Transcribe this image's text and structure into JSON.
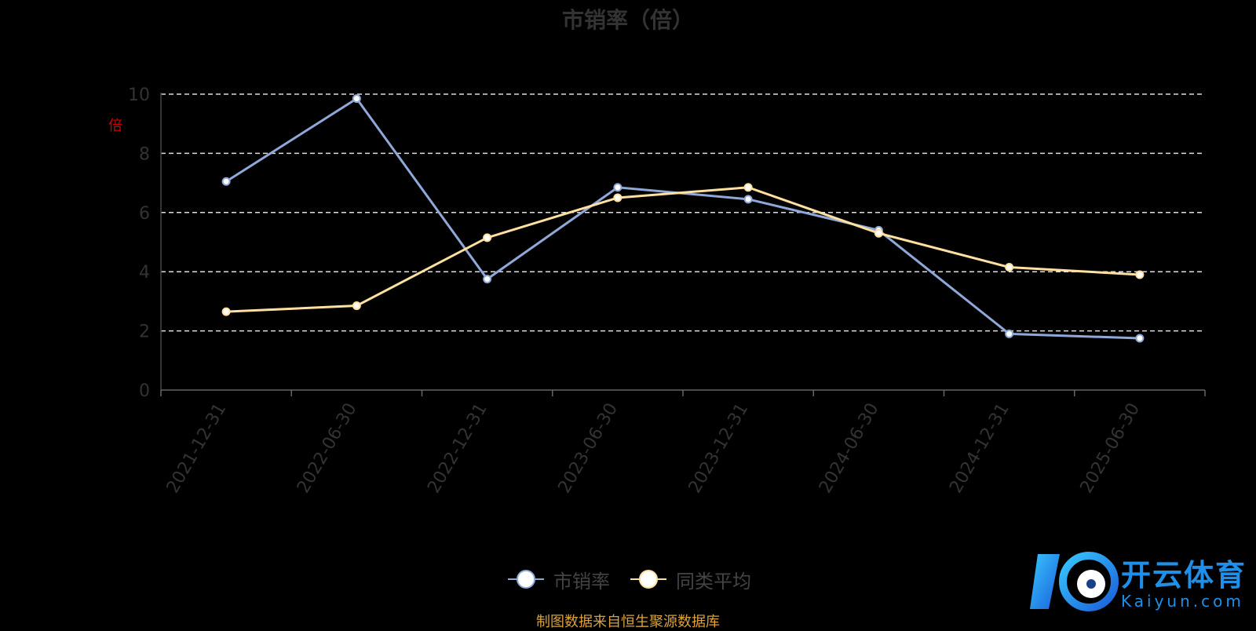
{
  "chart_data": {
    "type": "line",
    "title": "市销率（倍）",
    "ylabel": "倍",
    "ylim": [
      0,
      10
    ],
    "yticks": [
      0,
      2,
      4,
      6,
      8,
      10
    ],
    "grid": true,
    "legend_position": "bottom-center",
    "categories": [
      "2021-12-31",
      "2022-06-30",
      "2022-12-31",
      "2023-06-30",
      "2023-12-31",
      "2024-06-30",
      "2024-12-31",
      "2025-06-30"
    ],
    "series": [
      {
        "name": "市销率",
        "color": "#8fa8d8",
        "values": [
          7.05,
          9.85,
          3.75,
          6.85,
          6.45,
          5.4,
          1.9,
          1.75
        ]
      },
      {
        "name": "同类平均",
        "color": "#ffe0a0",
        "values": [
          2.65,
          2.85,
          5.15,
          6.5,
          6.85,
          5.3,
          4.15,
          3.9
        ]
      }
    ]
  },
  "source_note": "制图数据来自恒生聚源数据库",
  "watermark": {
    "brand": "开云体育",
    "domain": "Kaiyun.com"
  }
}
